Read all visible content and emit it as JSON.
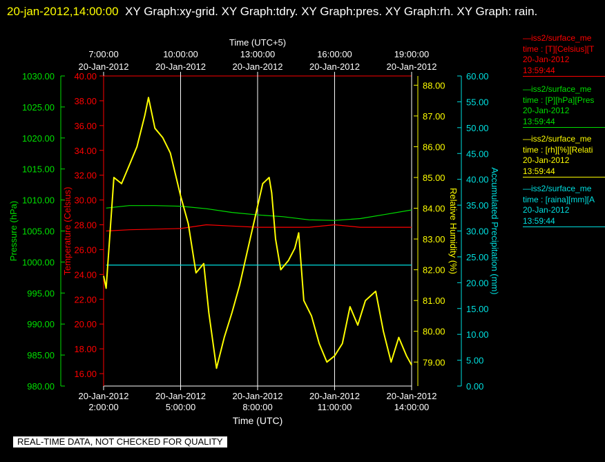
{
  "header": {
    "timestamp": "20-jan-2012,14:00:00",
    "graph_list": "XY Graph:xy-grid.  XY Graph:tdry.  XY Graph:pres.  XY Graph:rh.  XY Graph: rain."
  },
  "legend": [
    {
      "line1": "iss2/surface_me",
      "line2": "time : [T][Celsius][T",
      "date": "20-Jan-2012",
      "time": "13:59:44",
      "color": "#ff0000"
    },
    {
      "line1": "iss2/surface_me",
      "line2": "time : [P][hPa][Pres",
      "date": "20-Jan-2012",
      "time": "13:59:44",
      "color": "#00e000"
    },
    {
      "line1": "iss2/surface_me",
      "line2": "time : [rh][%][Relati",
      "date": "20-Jan-2012",
      "time": "13:59:44",
      "color": "#ffff00"
    },
    {
      "line1": "iss2/surface_me",
      "line2": "time : [raina][mm][A",
      "date": "20-Jan-2012",
      "time": "13:59:44",
      "color": "#00e0e0"
    }
  ],
  "footer": {
    "qc_notice": "REAL-TIME DATA, NOT CHECKED FOR QUALITY"
  },
  "colors": {
    "temperature": "#ff0000",
    "pressure": "#00e000",
    "humidity": "#ffff00",
    "precip": "#00e0e0",
    "grid": "#ffffff"
  },
  "chart_data": {
    "type": "line",
    "x_bottom": {
      "label": "Time (UTC)",
      "ticks": [
        {
          "date": "20-Jan-2012",
          "time": "2:00:00",
          "hours": 2
        },
        {
          "date": "20-Jan-2012",
          "time": "5:00:00",
          "hours": 5
        },
        {
          "date": "20-Jan-2012",
          "time": "8:00:00",
          "hours": 8
        },
        {
          "date": "20-Jan-2012",
          "time": "11:00:00",
          "hours": 11
        },
        {
          "date": "20-Jan-2012",
          "time": "14:00:00",
          "hours": 14
        }
      ],
      "range_hours": [
        2,
        14
      ]
    },
    "x_top": {
      "label": "Time (UTC+5)",
      "ticks": [
        {
          "time": "7:00:00",
          "date": "20-Jan-2012"
        },
        {
          "time": "10:00:00",
          "date": "20-Jan-2012"
        },
        {
          "time": "13:00:00",
          "date": "20-Jan-2012"
        },
        {
          "time": "16:00:00",
          "date": "20-Jan-2012"
        },
        {
          "time": "19:00:00",
          "date": "20-Jan-2012"
        }
      ]
    },
    "grid": true,
    "axes": {
      "pressure": {
        "label": "Pressure (hPa)",
        "range": [
          980,
          1030
        ],
        "ticks": [
          "980.00",
          "985.00",
          "990.00",
          "995.00",
          "1000.00",
          "1005.00",
          "1010.00",
          "1015.00",
          "1020.00",
          "1025.00",
          "1030.00"
        ]
      },
      "temperature": {
        "label": "Temperature (Celsius)",
        "range": [
          15,
          40
        ],
        "ticks": [
          "16.00",
          "18.00",
          "20.00",
          "22.00",
          "24.00",
          "26.00",
          "28.00",
          "30.00",
          "32.00",
          "34.00",
          "36.00",
          "38.00",
          "40.00"
        ]
      },
      "humidity": {
        "label": "Relative Humidity (%)",
        "range": [
          78.22,
          88.3
        ],
        "ticks": [
          "79.00",
          "80.00",
          "81.00",
          "82.00",
          "83.00",
          "84.00",
          "85.00",
          "86.00",
          "87.00",
          "88.00"
        ]
      },
      "precip": {
        "label": "Accumulated Precipitation (mm)",
        "range": [
          0,
          60
        ],
        "ticks": [
          "0.00",
          "5.00",
          "10.00",
          "15.00",
          "20.00",
          "25.00",
          "30.00",
          "35.00",
          "40.00",
          "45.00",
          "50.00",
          "55.00",
          "60.00"
        ]
      }
    },
    "series": [
      {
        "key": "temperature",
        "axis": "temperature",
        "x": [
          2.1,
          3,
          5,
          6,
          7,
          8,
          9,
          10,
          11,
          12,
          13,
          14
        ],
        "y": [
          27.5,
          27.6,
          27.7,
          28.0,
          27.9,
          27.8,
          27.8,
          27.8,
          28.0,
          27.8,
          27.8,
          27.8
        ]
      },
      {
        "key": "pressure",
        "axis": "pressure",
        "x": [
          2.1,
          3,
          4,
          5,
          6,
          7,
          8,
          9,
          10,
          11,
          12,
          13,
          14
        ],
        "y": [
          1008.7,
          1009.1,
          1009.1,
          1009.0,
          1008.6,
          1008.0,
          1007.6,
          1007.3,
          1006.8,
          1006.7,
          1007.0,
          1007.7,
          1008.4
        ]
      },
      {
        "key": "precip",
        "axis": "precip",
        "x": [
          2.1,
          14
        ],
        "y": [
          23.4,
          23.4
        ]
      },
      {
        "key": "humidity",
        "axis": "humidity",
        "x": [
          2.0,
          2.1,
          2.4,
          2.7,
          3.0,
          3.3,
          3.6,
          3.75,
          4.0,
          4.3,
          4.6,
          5.0,
          5.3,
          5.6,
          5.9,
          6.1,
          6.4,
          6.7,
          7.0,
          7.3,
          7.6,
          7.9,
          8.2,
          8.45,
          8.55,
          8.7,
          8.9,
          9.2,
          9.45,
          9.6,
          9.8,
          10.1,
          10.4,
          10.7,
          11.0,
          11.3,
          11.6,
          11.9,
          12.2,
          12.6,
          12.9,
          13.2,
          13.5,
          13.8,
          14.0
        ],
        "y": [
          81.8,
          81.4,
          85.0,
          84.8,
          85.4,
          86.0,
          87.0,
          87.6,
          86.6,
          86.3,
          85.8,
          84.4,
          83.5,
          81.9,
          82.2,
          80.6,
          78.8,
          79.8,
          80.6,
          81.5,
          82.6,
          83.7,
          84.8,
          85.0,
          84.5,
          83.0,
          82.0,
          82.3,
          82.7,
          83.2,
          81.0,
          80.5,
          79.6,
          79.0,
          79.2,
          79.6,
          80.8,
          80.2,
          81.0,
          81.3,
          80.0,
          79.0,
          79.8,
          79.2,
          78.9
        ]
      }
    ]
  }
}
